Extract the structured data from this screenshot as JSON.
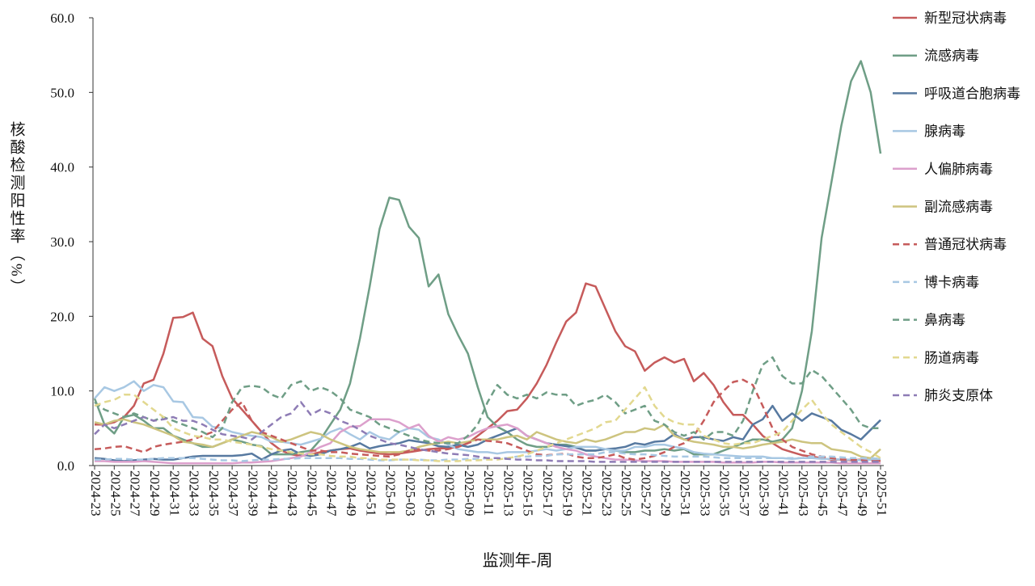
{
  "chart_data": {
    "type": "line",
    "xlabel": "监测年-周",
    "ylabel": "核酸检测阳性率（%）",
    "categories": [
      "2024-23",
      null,
      "2024-25",
      null,
      "2024-27",
      null,
      "2024-29",
      null,
      "2024-31",
      null,
      "2024-33",
      null,
      "2024-35",
      null,
      "2024-37",
      null,
      "2024-39",
      null,
      "2024-41",
      null,
      "2024-43",
      null,
      "2024-45",
      null,
      "2024-47",
      null,
      "2024-49",
      null,
      "2024-51",
      null,
      "2025-01",
      null,
      "2025-03",
      null,
      "2025-05",
      null,
      "2025-07",
      null,
      "2025-09",
      null,
      "2025-11",
      null,
      "2025-13",
      null,
      "2025-15",
      null,
      "2025-17",
      null,
      "2025-19",
      null,
      "2025-21",
      null,
      "2025-23",
      null,
      "2025-25",
      null,
      "2025-27",
      null,
      "2025-29",
      null,
      "2025-31",
      null,
      "2025-33",
      null,
      "2025-35",
      null,
      "2025-37",
      null,
      "2025-39",
      null,
      "2025-41",
      null,
      "2025-43",
      null,
      "2025-45",
      null,
      "2025-47",
      null,
      "2025-49",
      null,
      "2025-51"
    ],
    "ylim": [
      0,
      60
    ],
    "yticks": [
      {
        "value": 0,
        "label": "0.0"
      },
      {
        "value": 10,
        "label": "10.0"
      },
      {
        "value": 20,
        "label": "20.0"
      },
      {
        "value": 30,
        "label": "30.0"
      },
      {
        "value": 40,
        "label": "40.0"
      },
      {
        "value": 50,
        "label": "50.0"
      },
      {
        "value": 60,
        "label": "60.0"
      }
    ],
    "grid": false,
    "legend": "right",
    "series": [
      {
        "name": "新型冠状病毒",
        "color": "#c65b5b",
        "style": "solid",
        "values": [
          5.5,
          5.5,
          5.8,
          6.5,
          8,
          11,
          11.5,
          15,
          19.8,
          19.9,
          20.5,
          17,
          16,
          12,
          9,
          7.5,
          6,
          4.5,
          3,
          2,
          1.5,
          1.3,
          1.5,
          1.8,
          2,
          2.2,
          2.3,
          2,
          1.8,
          1.6,
          1.5,
          1.6,
          1.8,
          2,
          2.2,
          2.3,
          2.3,
          2.5,
          3,
          4,
          5,
          6,
          7.3,
          7.5,
          9,
          11,
          13.5,
          16.5,
          19.3,
          20.5,
          24.4,
          24,
          21,
          18,
          16,
          15.3,
          12.7,
          13.8,
          14.5,
          13.8,
          14.3,
          11.3,
          12.4,
          10.8,
          8.5,
          6.8,
          6.8,
          5.5,
          4,
          3,
          2.2,
          1.8,
          1.4,
          1.2,
          1,
          0.8,
          0.8,
          0.7,
          0.8,
          0.8,
          0.6
        ]
      },
      {
        "name": "流感病毒",
        "color": "#6f9e86",
        "style": "solid",
        "values": [
          9,
          5.5,
          4.3,
          6.5,
          6.8,
          6,
          5,
          5,
          4,
          3.5,
          3,
          2.5,
          2.5,
          3,
          3.5,
          3.2,
          2.8,
          2.6,
          1.5,
          1.5,
          1.5,
          1.8,
          2,
          3.5,
          5.5,
          7.5,
          11,
          17,
          24,
          31.7,
          35.9,
          35.6,
          32,
          30.5,
          24,
          25.6,
          20.3,
          17.5,
          15,
          10.5,
          6.5,
          5.2,
          4.5,
          3.5,
          2.8,
          2.5,
          2.5,
          2.8,
          2.8,
          2.5,
          2,
          2,
          2.2,
          2,
          1.8,
          1.8,
          2,
          2,
          2.2,
          2,
          2.2,
          1.5,
          1.5,
          1.5,
          2,
          2.5,
          3,
          3.5,
          3.5,
          3.2,
          3.5,
          5,
          10,
          18,
          30.5,
          38,
          45.5,
          51.5,
          54.2,
          50,
          41.8
        ]
      },
      {
        "name": "呼吸道合胞病毒",
        "color": "#5779a0",
        "style": "solid",
        "values": [
          1,
          0.9,
          0.7,
          0.6,
          0.7,
          0.8,
          0.9,
          0.8,
          0.8,
          1,
          1.2,
          1.3,
          1.3,
          1.3,
          1.3,
          1.4,
          1.6,
          0.8,
          1.5,
          2,
          2.2,
          1.5,
          1.3,
          1.5,
          2,
          2.2,
          2.5,
          3,
          2.3,
          2.6,
          2.8,
          3,
          3.4,
          3.2,
          3,
          2.6,
          2.5,
          2.8,
          2.5,
          2.8,
          3.5,
          4,
          4.5,
          5,
          4,
          3.5,
          3,
          2.8,
          2.6,
          2.4,
          2,
          2,
          2.2,
          2.3,
          2.5,
          3,
          2.8,
          3.2,
          3.3,
          4.2,
          3.5,
          3.8,
          3.8,
          3.5,
          3.3,
          3.8,
          3.5,
          5.5,
          6.2,
          8,
          6,
          7,
          6,
          7,
          6.5,
          6,
          4.8,
          4.2,
          3.5,
          4.8,
          6.1
        ]
      },
      {
        "name": "腺病毒",
        "color": "#a8c8e3",
        "style": "solid",
        "values": [
          9,
          10.5,
          10,
          10.5,
          11.3,
          10,
          10.8,
          10.5,
          8.6,
          8.5,
          6.5,
          6.4,
          5.2,
          5,
          4.5,
          4.2,
          4,
          3.8,
          3.2,
          3.2,
          3,
          2.8,
          3.2,
          3.6,
          4.5,
          5,
          4.2,
          3.5,
          4.5,
          3.8,
          3.5,
          4.5,
          5,
          4.8,
          3.8,
          3.5,
          2.8,
          2.2,
          2,
          1.8,
          1.8,
          1.6,
          1.8,
          1.8,
          1.8,
          2,
          2.2,
          2,
          2.2,
          2.5,
          2.5,
          2.5,
          2.2,
          2,
          2,
          2.5,
          2.5,
          2.8,
          2.8,
          2.5,
          2.3,
          1.8,
          1.6,
          1.5,
          1.4,
          1.3,
          1.2,
          1.2,
          1.2,
          1,
          1,
          0.9,
          1,
          1,
          0.9,
          0.9,
          0.8,
          0.8,
          0.7,
          0.8,
          0.9
        ]
      },
      {
        "name": "人偏肺病毒",
        "color": "#dca0cc",
        "style": "solid",
        "values": [
          0.6,
          0.6,
          0.5,
          0.5,
          0.5,
          0.6,
          0.5,
          0.4,
          0.3,
          0.3,
          0.3,
          0.3,
          0.3,
          0.3,
          0.3,
          0.4,
          0.4,
          0.5,
          0.6,
          0.8,
          1,
          1.2,
          1.8,
          2.5,
          3,
          4.5,
          5.2,
          5.3,
          6.2,
          6.2,
          6.2,
          5.8,
          5,
          5.5,
          4,
          3.2,
          3.8,
          3.5,
          3.8,
          4.5,
          5,
          5.3,
          5.5,
          5,
          4,
          3.5,
          3,
          2.5,
          2.2,
          2,
          1.5,
          1.2,
          1,
          0.8,
          0.8,
          0.7,
          0.6,
          0.6,
          0.6,
          0.5,
          0.5,
          0.5,
          0.5,
          0.5,
          0.4,
          0.4,
          0.4,
          0.4,
          0.5,
          0.5,
          0.4,
          0.4,
          0.4,
          0.4,
          0.4,
          0.4,
          0.3,
          0.3,
          0.3,
          0.3,
          0.3
        ]
      },
      {
        "name": "副流感病毒",
        "color": "#cdc47f",
        "style": "solid",
        "values": [
          5.8,
          5.5,
          6,
          6.2,
          5.8,
          5.5,
          5,
          4.5,
          4,
          3.2,
          3,
          2.8,
          2.5,
          3,
          3.5,
          4,
          4.5,
          4.2,
          3.8,
          3.2,
          3.5,
          4,
          4.5,
          4.2,
          3.5,
          3,
          2.5,
          2.2,
          2,
          1.8,
          1.8,
          1.8,
          2,
          2.5,
          2.8,
          3,
          3.2,
          3,
          3.2,
          3.5,
          3.5,
          3.5,
          3.8,
          4,
          3.5,
          4.5,
          4,
          3.5,
          3.2,
          3,
          3.5,
          3.2,
          3.5,
          4,
          4.5,
          4.5,
          5,
          4.8,
          5.5,
          4,
          3.5,
          3.2,
          3,
          2.8,
          2.5,
          2.5,
          2.3,
          2.5,
          2.8,
          3,
          3.2,
          3.5,
          3.2,
          3,
          3,
          2.2,
          2,
          1.8,
          1.2,
          1,
          2.2
        ]
      },
      {
        "name": "普通冠状病毒",
        "color": "#c65b5b",
        "style": "dashed",
        "values": [
          2.2,
          2.3,
          2.5,
          2.6,
          2.2,
          1.8,
          2.5,
          2.8,
          3,
          3.2,
          3.5,
          4,
          4.5,
          6,
          7.5,
          8.5,
          6,
          4.5,
          4,
          3.5,
          3,
          2.5,
          2,
          2,
          1.8,
          1.8,
          1.6,
          1.5,
          1.4,
          1.3,
          1.2,
          1.5,
          2,
          2.2,
          2,
          2,
          2.2,
          2.5,
          3,
          3.5,
          3.3,
          3.2,
          3,
          2.5,
          2,
          1.5,
          1.4,
          1.5,
          1.6,
          1.2,
          1,
          1,
          1.2,
          1.5,
          1,
          0.8,
          1,
          1.3,
          1.8,
          2.5,
          3,
          4,
          6,
          8.5,
          10,
          11.2,
          11.5,
          10.8,
          8,
          5,
          3.5,
          2.5,
          2,
          1.5,
          1.2,
          1,
          0.8,
          0.8,
          0.7,
          0.6,
          0.6
        ]
      },
      {
        "name": "博卡病毒",
        "color": "#a8c8e3",
        "style": "dashed",
        "values": [
          0.8,
          0.8,
          0.9,
          0.9,
          0.8,
          0.8,
          0.9,
          1,
          1,
          1,
          1,
          0.9,
          0.8,
          0.7,
          0.7,
          0.6,
          0.7,
          0.8,
          0.8,
          0.9,
          0.9,
          1,
          1,
          1,
          1,
          1,
          0.9,
          0.9,
          0.8,
          0.7,
          0.7,
          0.8,
          0.8,
          0.8,
          0.7,
          0.7,
          0.8,
          0.8,
          0.9,
          0.9,
          1,
          1,
          1,
          1.2,
          1.2,
          1.3,
          1.3,
          1.5,
          1.5,
          1.5,
          1.5,
          1.5,
          1.8,
          1.8,
          1.6,
          1.5,
          1.5,
          1.4,
          1.3,
          1.2,
          1.2,
          1.2,
          1.2,
          1.1,
          1,
          1,
          1,
          1,
          1,
          1,
          1,
          1,
          1,
          1.2,
          1.2,
          1.2,
          1.1,
          1,
          1,
          1,
          0.9
        ]
      },
      {
        "name": "鼻病毒",
        "color": "#6f9e86",
        "style": "dashed",
        "values": [
          8.5,
          7.5,
          7,
          6.5,
          7,
          6.5,
          6,
          6.5,
          6,
          5.5,
          5,
          4.5,
          3.8,
          5,
          8.5,
          10.5,
          10.7,
          10.5,
          9.5,
          9,
          10.8,
          11.3,
          10,
          10.5,
          10,
          9,
          7.5,
          7,
          6.5,
          5.5,
          5,
          4.5,
          4,
          3.5,
          3.2,
          3,
          3,
          3,
          4,
          5.5,
          8.5,
          10.8,
          9.5,
          9,
          9.5,
          9,
          9.8,
          9.5,
          9.5,
          8,
          8.5,
          8.8,
          9.5,
          8.5,
          7,
          7.5,
          8,
          6,
          5.5,
          4.5,
          4,
          4.5,
          3.5,
          4.5,
          4.5,
          4,
          6,
          10,
          13.5,
          14.5,
          12,
          11,
          11,
          12.8,
          12,
          10.5,
          9,
          7.5,
          5.5,
          5,
          5
        ]
      },
      {
        "name": "肠道病毒",
        "color": "#e2d88f",
        "style": "dashed",
        "values": [
          8,
          8.5,
          8.8,
          9.5,
          9.5,
          8.5,
          7.5,
          6.5,
          5,
          4.5,
          4,
          3.8,
          3.5,
          3.5,
          3.2,
          3,
          2.8,
          2.5,
          2.2,
          2,
          1.8,
          1.6,
          1.5,
          1.5,
          1.3,
          1.2,
          1.2,
          1,
          1,
          0.8,
          0.8,
          0.8,
          0.8,
          0.7,
          0.7,
          0.6,
          0.6,
          0.6,
          0.7,
          0.7,
          0.8,
          0.8,
          1,
          1.2,
          1.5,
          2,
          2.5,
          3,
          3.5,
          4,
          4.5,
          5,
          5.8,
          6,
          7.5,
          9,
          10.5,
          8,
          6.5,
          5.8,
          5.5,
          5.5,
          4,
          3.5,
          3,
          2.8,
          3,
          3,
          3.5,
          4,
          4.5,
          6,
          7.5,
          8.8,
          7,
          5.5,
          4.5,
          3.5,
          2.5,
          1.8,
          1
        ]
      },
      {
        "name": "肺炎支原体",
        "color": "#8e7cb5",
        "style": "dashed",
        "values": [
          4.2,
          5.5,
          5,
          5.5,
          6,
          6.5,
          6,
          6.2,
          6.5,
          6,
          6,
          5.5,
          4.8,
          4.2,
          4,
          3.8,
          3.5,
          4.5,
          5.5,
          6.5,
          7,
          8.5,
          6.8,
          7.5,
          7,
          6,
          5.5,
          4.8,
          4,
          3.5,
          3,
          2.8,
          2.5,
          2.2,
          2,
          1.8,
          1.6,
          1.5,
          1.4,
          1.2,
          1,
          1,
          0.9,
          0.8,
          0.8,
          0.7,
          0.7,
          0.6,
          0.6,
          0.6,
          0.6,
          0.5,
          0.5,
          0.5,
          0.5,
          0.5,
          0.5,
          0.5,
          0.5,
          0.5,
          0.5,
          0.5,
          0.5,
          0.5,
          0.5,
          0.5,
          0.5,
          0.5,
          0.5,
          0.5,
          0.5,
          0.5,
          0.5,
          0.5,
          0.5,
          0.5,
          0.5,
          0.5,
          0.5,
          0.5,
          0.5
        ]
      }
    ]
  }
}
